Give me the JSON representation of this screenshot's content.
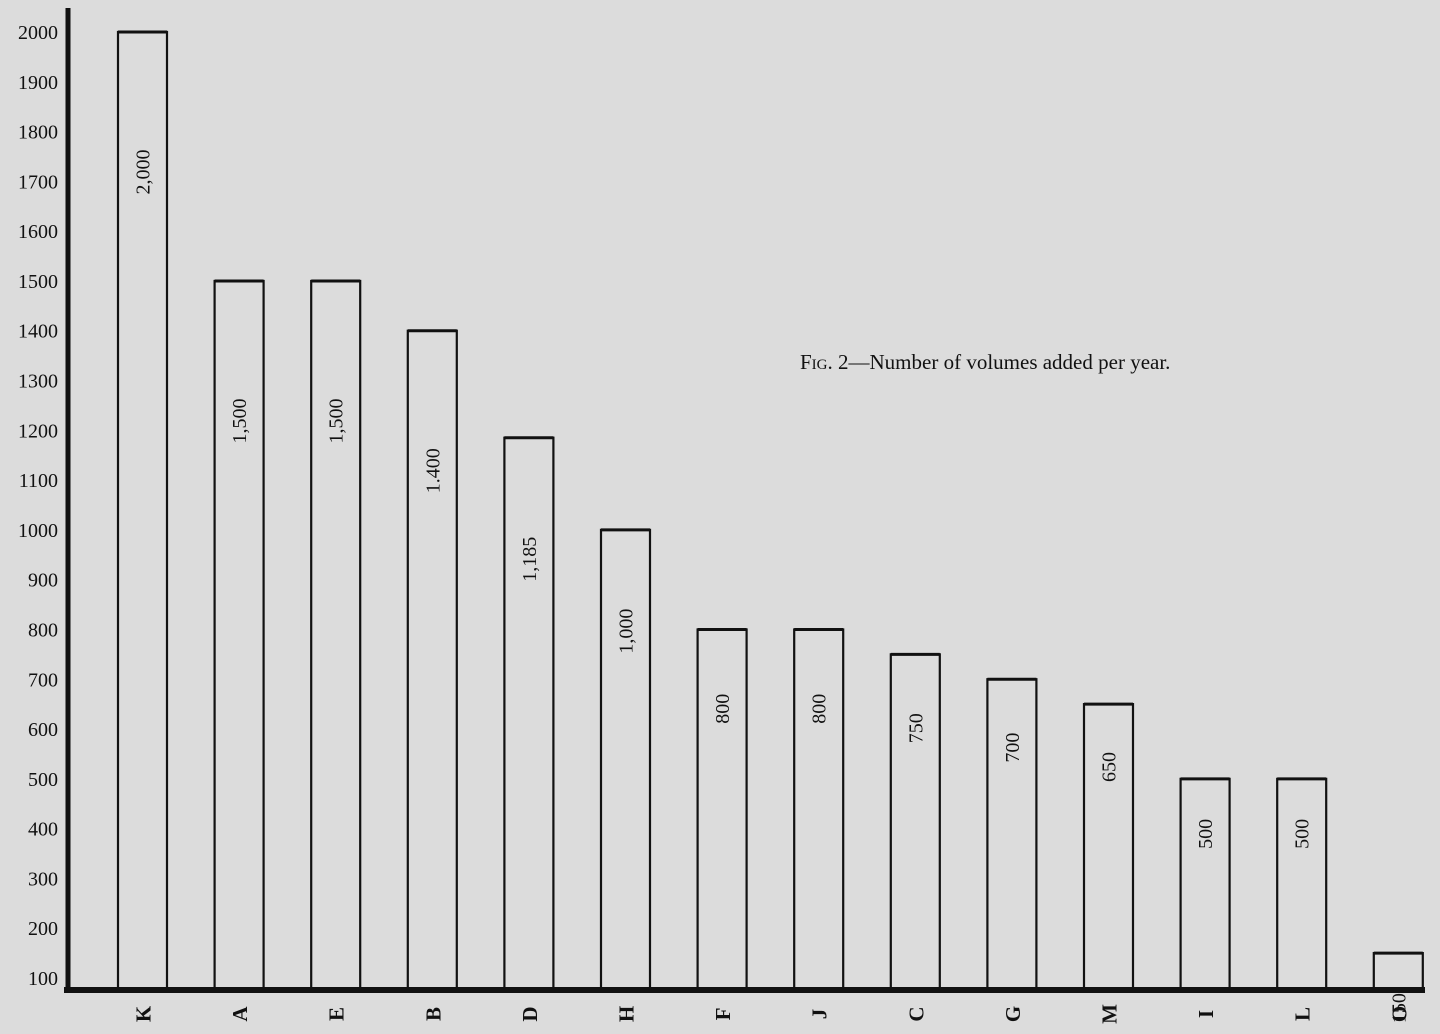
{
  "caption": {
    "fig_label": "Fig. 2",
    "text": "—Number of volumes added per year."
  },
  "chart_data": {
    "type": "bar",
    "title": "Fig. 2—Number of volumes added per year.",
    "xlabel": "",
    "ylabel": "",
    "categories": [
      "K",
      "A",
      "E",
      "B",
      "D",
      "H",
      "F",
      "J",
      "C",
      "G",
      "M",
      "I",
      "L",
      "O"
    ],
    "values": [
      2000,
      1500,
      1500,
      1400,
      1185,
      1000,
      800,
      800,
      750,
      700,
      650,
      500,
      500,
      150
    ],
    "value_labels": [
      "2,000",
      "1,500",
      "1,500",
      "1.400",
      "1,185",
      "1,000",
      "800",
      "800",
      "750",
      "700",
      "650",
      "500",
      "500",
      "150"
    ],
    "y_ticks": [
      100,
      200,
      300,
      400,
      500,
      600,
      700,
      800,
      900,
      1000,
      1100,
      1200,
      1300,
      1400,
      1500,
      1600,
      1700,
      1800,
      1900,
      2000
    ],
    "y_tick_labels": [
      "100",
      "200",
      "300",
      "400",
      "500",
      "600",
      "700",
      "800",
      "900",
      "1000",
      "1100",
      "1200",
      "1300",
      "1400",
      "1500",
      "1600",
      "1700",
      "1800",
      "1900",
      "2000"
    ],
    "ylim": [
      100,
      2000
    ],
    "grid": false,
    "legend": "none",
    "bar_fill": "#dcdcdc",
    "bar_stroke": "#111111",
    "axis_color": "#111111"
  }
}
